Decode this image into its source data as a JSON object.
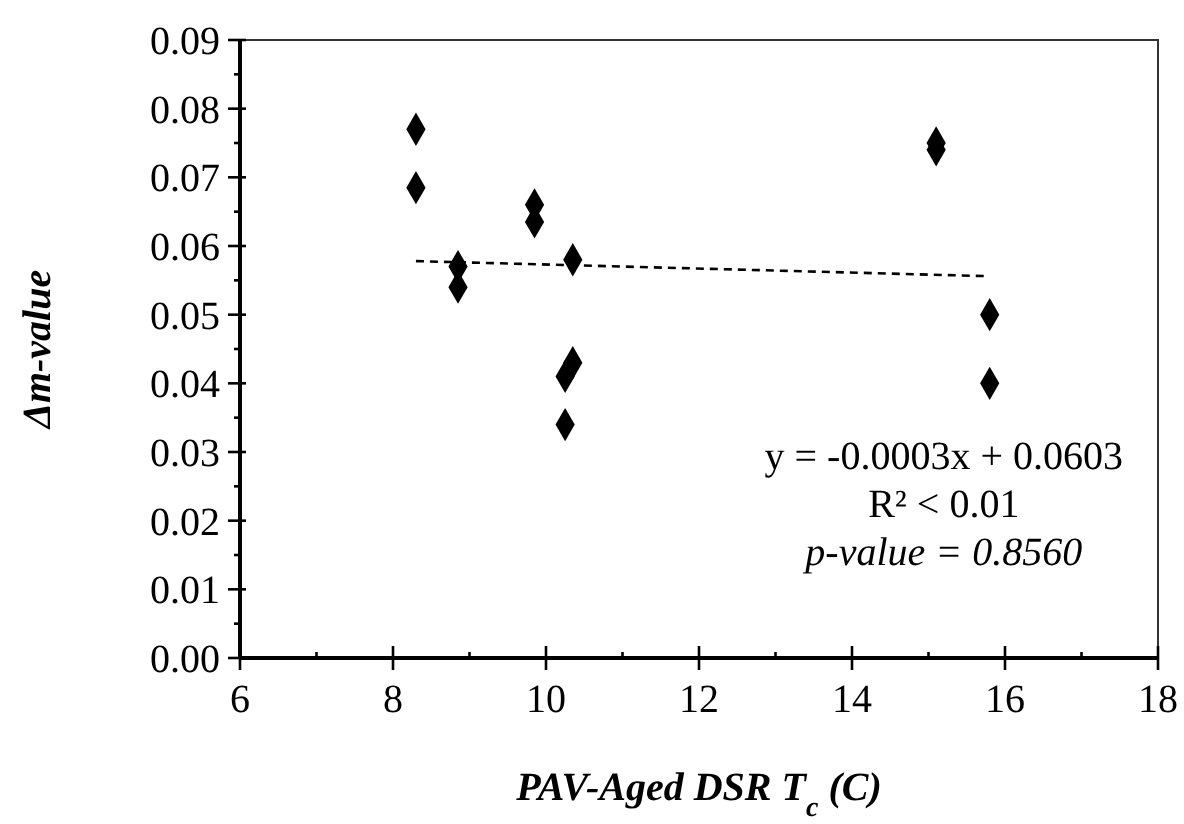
{
  "chart_data": {
    "type": "scatter",
    "xlabel": "PAV-Aged DSR T$_{c}$ (C)",
    "ylabel": "Δm-value",
    "xlim": [
      6,
      18
    ],
    "ylim": [
      0,
      0.09
    ],
    "xticks": [
      6,
      {
        "value": 7,
        "label": null
      },
      8,
      {
        "value": 9,
        "label": null
      },
      10,
      {
        "value": 11,
        "label": null
      },
      12,
      {
        "value": 13,
        "label": null
      },
      14,
      {
        "value": 15,
        "label": null
      },
      16,
      {
        "value": 17,
        "label": null
      },
      18
    ],
    "yticks": [
      {
        "value": 0,
        "label": "0.00"
      },
      {
        "value": 0.005,
        "label": null
      },
      {
        "value": 0.01,
        "label": "0.01"
      },
      {
        "value": 0.015,
        "label": null
      },
      {
        "value": 0.02,
        "label": "0.02"
      },
      {
        "value": 0.025,
        "label": null
      },
      {
        "value": 0.03,
        "label": "0.03"
      },
      {
        "value": 0.035,
        "label": null
      },
      {
        "value": 0.04,
        "label": "0.04"
      },
      {
        "value": 0.045,
        "label": null
      },
      {
        "value": 0.05,
        "label": "0.05"
      },
      {
        "value": 0.055,
        "label": null
      },
      {
        "value": 0.06,
        "label": "0.06"
      },
      {
        "value": 0.065,
        "label": null
      },
      {
        "value": 0.07,
        "label": "0.07"
      },
      {
        "value": 0.075,
        "label": null
      },
      {
        "value": 0.08,
        "label": "0.08"
      },
      {
        "value": 0.085,
        "label": null
      },
      {
        "value": 0.09,
        "label": "0.09"
      }
    ],
    "grid": false,
    "series": [
      {
        "color": "#000000",
        "marker": "diamond",
        "x": [
          8.3,
          8.3,
          8.85,
          8.85,
          9.85,
          9.85,
          10.35,
          10.35,
          10.25,
          10.25,
          15.1,
          15.1,
          15.8,
          15.8
        ],
        "values": [
          0.077,
          0.0685,
          0.057,
          0.054,
          0.066,
          0.0635,
          0.058,
          0.043,
          0.041,
          0.034,
          0.075,
          0.074,
          0.05,
          0.04
        ]
      },
      {
        "type": "line",
        "color": "#000000",
        "marker": "none",
        "line_style": "dashed",
        "x": [
          8.3,
          15.8
        ],
        "values": [
          0.0578,
          0.0556
        ]
      }
    ],
    "annotations": [
      "y = -0.0003x + 0.0603",
      "R² < 0.01",
      "p-value = 0.8560"
    ]
  }
}
